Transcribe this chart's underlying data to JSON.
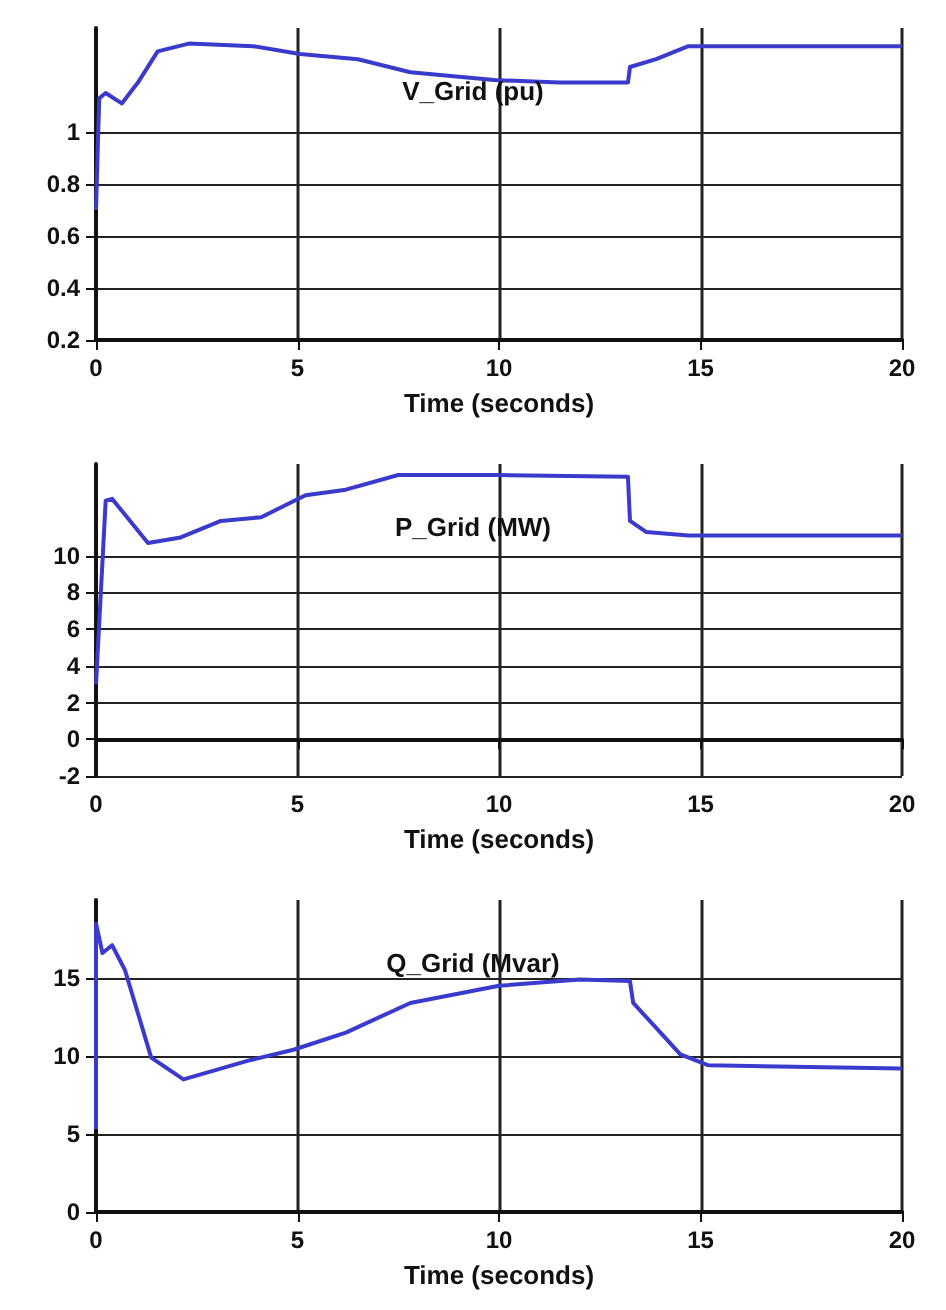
{
  "chart_data": [
    {
      "type": "line",
      "title": "V_Grid (pu)",
      "xlabel": "Time (seconds)",
      "color": "#3a3acc",
      "marker": "none",
      "line_style": "solid",
      "grid": true,
      "x": [
        0,
        0.08,
        0.24,
        0.64,
        1.04,
        1.53,
        2.3,
        3.9,
        5.06,
        6.5,
        7.8,
        9.88,
        11.5,
        13.2,
        13.25,
        13.9,
        14.7,
        15.5,
        20
      ],
      "values": [
        0.7,
        1.13,
        1.15,
        1.11,
        1.19,
        1.31,
        1.34,
        1.33,
        1.3,
        1.28,
        1.23,
        1.2,
        1.19,
        1.19,
        1.25,
        1.28,
        1.33,
        1.33,
        1.33
      ],
      "xlim": [
        0,
        20
      ],
      "xticks": [
        0,
        5,
        10,
        15,
        20
      ],
      "ylim": [
        0.2,
        1.4
      ],
      "yticks": [
        0.2,
        0.4,
        0.6,
        0.8,
        1
      ]
    },
    {
      "type": "line",
      "title": "P_Grid (MW)",
      "xlabel": "Time (seconds)",
      "color": "#3a3acc",
      "marker": "none",
      "line_style": "solid",
      "grid": true,
      "x": [
        0,
        0.24,
        0.4,
        1.29,
        2.1,
        3.1,
        4.1,
        5.2,
        6.2,
        7.5,
        10.0,
        13.2,
        13.25,
        13.65,
        14.7,
        20
      ],
      "values": [
        3.0,
        13.0,
        13.1,
        10.7,
        11.0,
        11.9,
        12.1,
        13.3,
        13.6,
        14.4,
        14.4,
        14.3,
        11.9,
        11.3,
        11.1,
        11.1
      ],
      "xlim": [
        0,
        20
      ],
      "xticks": [
        0,
        5,
        10,
        15,
        20
      ],
      "ylim": [
        -2,
        15
      ],
      "yticks": [
        -2,
        0,
        2,
        4,
        6,
        8,
        10
      ]
    },
    {
      "type": "line",
      "title": "Q_Grid (Mvar)",
      "xlabel": "Time (seconds)",
      "color": "#3a3acc",
      "marker": "none",
      "line_style": "solid",
      "grid": true,
      "x": [
        0,
        0,
        0.16,
        0.4,
        0.72,
        1.37,
        2.17,
        3.78,
        4.9,
        6.2,
        7.8,
        10.0,
        12.0,
        13.25,
        13.33,
        13.9,
        14.5,
        15.2,
        20
      ],
      "values": [
        5.3,
        18.5,
        16.6,
        17.1,
        15.5,
        9.9,
        8.5,
        9.7,
        10.4,
        11.5,
        13.4,
        14.5,
        14.9,
        14.8,
        13.4,
        11.8,
        10.1,
        9.4,
        9.2
      ],
      "xlim": [
        0,
        20
      ],
      "xticks": [
        0,
        5,
        10,
        15,
        20
      ],
      "ylim": [
        0,
        20
      ],
      "yticks": [
        0,
        5,
        10,
        15
      ]
    }
  ]
}
